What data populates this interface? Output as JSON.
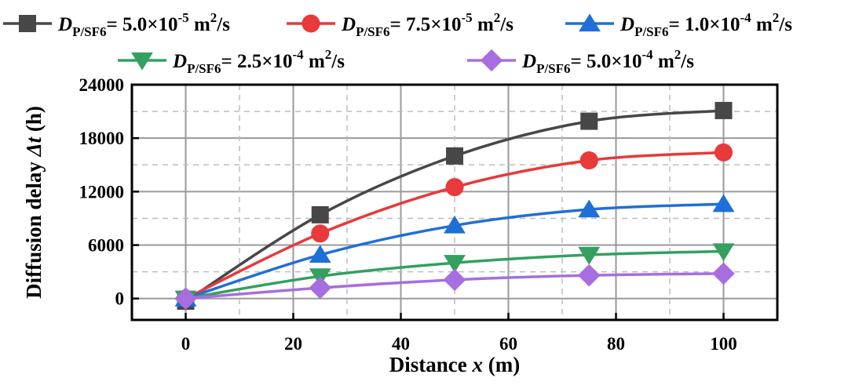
{
  "chart_data": {
    "type": "line",
    "title": "",
    "xlabel": {
      "prefix": "Distance ",
      "var": "x",
      "suffix": " (m)"
    },
    "ylabel": {
      "prefix": "Diffusion delay ",
      "var": "Δt",
      "suffix": " (h)"
    },
    "xlim": [
      -10,
      110
    ],
    "ylim": [
      -2400,
      24000
    ],
    "x_ticks": [
      0,
      20,
      40,
      60,
      80,
      100
    ],
    "y_ticks": [
      0,
      6000,
      12000,
      18000,
      24000
    ],
    "x_tick_labels": [
      "0",
      "20",
      "40",
      "60",
      "80",
      "100"
    ],
    "y_tick_labels": [
      "0",
      "6000",
      "12000",
      "18000",
      "24000"
    ],
    "grid": true,
    "legend_position": "top",
    "x": [
      0,
      25,
      50,
      75,
      100
    ],
    "series": [
      {
        "name": "D_P/SF6 = 5.0×10^-5 m²/s",
        "legend": {
          "sym": "D",
          "sub": "P/SF6",
          "mid": "= 5.0×10",
          "exp": "-5",
          "unit": " m",
          "uexp": "2",
          "tail": "/s"
        },
        "color": "#474747",
        "marker": "square",
        "values": [
          -300,
          9400,
          16000,
          19900,
          21100
        ]
      },
      {
        "name": "D_P/SF6 = 7.5×10^-5 m²/s",
        "legend": {
          "sym": "D",
          "sub": "P/SF6",
          "mid": "= 7.5×10",
          "exp": "-5",
          "unit": " m",
          "uexp": "2",
          "tail": "/s"
        },
        "color": "#e8393b",
        "marker": "circle",
        "values": [
          0,
          7300,
          12500,
          15500,
          16400
        ]
      },
      {
        "name": "D_P/SF6 = 1.0×10^-4 m²/s",
        "legend": {
          "sym": "D",
          "sub": "P/SF6",
          "mid": "= 1.0×10",
          "exp": "-4",
          "unit": " m",
          "uexp": "2",
          "tail": "/s"
        },
        "color": "#1f6fd8",
        "marker": "triangle-up",
        "values": [
          0,
          4900,
          8200,
          10000,
          10600
        ]
      },
      {
        "name": "D_P/SF6 = 2.5×10^-4 m²/s",
        "legend": {
          "sym": "D",
          "sub": "P/SF6",
          "mid": "= 2.5×10",
          "exp": "-4",
          "unit": " m",
          "uexp": "2",
          "tail": "/s"
        },
        "color": "#33a05f",
        "marker": "triangle-down",
        "values": [
          0,
          2500,
          4000,
          4900,
          5300
        ]
      },
      {
        "name": "D_P/SF6 = 5.0×10^-4 m²/s",
        "legend": {
          "sym": "D",
          "sub": "P/SF6",
          "mid": "= 5.0×10",
          "exp": "-4",
          "unit": " m",
          "uexp": "2",
          "tail": "/s"
        },
        "color": "#a76ee0",
        "marker": "diamond",
        "values": [
          0,
          1200,
          2100,
          2600,
          2800
        ]
      }
    ]
  }
}
